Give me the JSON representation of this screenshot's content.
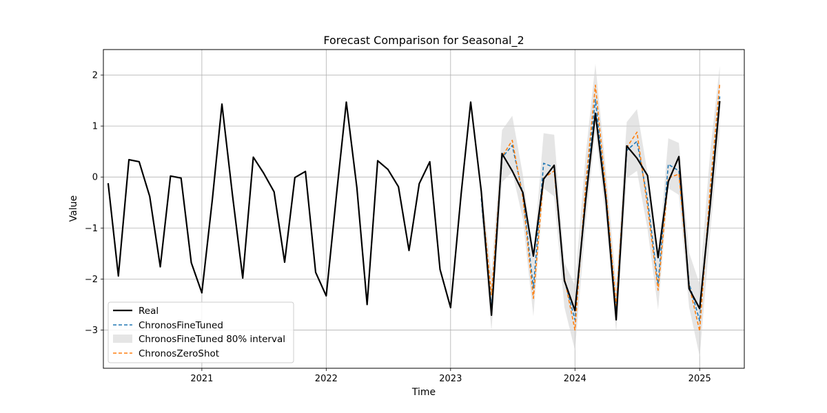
{
  "chart_data": {
    "type": "line",
    "title": "Forecast Comparison for Seasonal_2",
    "xlabel": "Time",
    "ylabel": "Value",
    "xlim": [
      "2020-03-18",
      "2025-05-12"
    ],
    "ylim": [
      -3.75,
      2.5
    ],
    "x_ticks": [
      "2021",
      "2022",
      "2023",
      "2024",
      "2025"
    ],
    "y_ticks": [
      -3,
      -2,
      -1,
      0,
      1,
      2
    ],
    "grid": true,
    "legend_position": "lower-left",
    "legend": [
      "Real",
      "ChronosFineTuned",
      "ChronosFineTuned 80% interval",
      "ChronosZeroShot"
    ],
    "series": [
      {
        "name": "Real",
        "style": "solid",
        "color": "#000000",
        "x": [
          "2020-04",
          "2020-05",
          "2020-06",
          "2020-07",
          "2020-08",
          "2020-09",
          "2020-10",
          "2020-11",
          "2020-12",
          "2021-01",
          "2021-02",
          "2021-03",
          "2021-04",
          "2021-05",
          "2021-06",
          "2021-07",
          "2021-08",
          "2021-09",
          "2021-10",
          "2021-11",
          "2021-12",
          "2022-01",
          "2022-02",
          "2022-03",
          "2022-04",
          "2022-05",
          "2022-06",
          "2022-07",
          "2022-08",
          "2022-09",
          "2022-10",
          "2022-11",
          "2022-12",
          "2023-01",
          "2023-02",
          "2023-03",
          "2023-04",
          "2023-05",
          "2023-06",
          "2023-07",
          "2023-08",
          "2023-09",
          "2023-10",
          "2023-11",
          "2023-12",
          "2024-01",
          "2024-02",
          "2024-03",
          "2024-04",
          "2024-05",
          "2024-06",
          "2024-07",
          "2024-08",
          "2024-09",
          "2024-10",
          "2024-11",
          "2024-12",
          "2025-01",
          "2025-02",
          "2025-03"
        ],
        "values": [
          -0.12,
          -1.94,
          0.34,
          0.3,
          -0.38,
          -1.76,
          0.02,
          -0.02,
          -1.68,
          -2.27,
          -0.43,
          1.43,
          -0.36,
          -1.98,
          0.39,
          0.08,
          -0.29,
          -1.67,
          -0.01,
          0.11,
          -1.87,
          -2.33,
          -0.29,
          1.47,
          -0.21,
          -2.5,
          0.32,
          0.15,
          -0.19,
          -1.44,
          -0.13,
          0.3,
          -1.81,
          -2.56,
          -0.33,
          1.47,
          -0.28,
          -2.71,
          0.46,
          0.12,
          -0.3,
          -1.55,
          -0.04,
          0.23,
          -2.03,
          -2.62,
          -0.48,
          1.25,
          -0.45,
          -2.8,
          0.61,
          0.37,
          0.03,
          -1.58,
          -0.09,
          0.4,
          -2.19,
          -2.58,
          -0.54,
          1.49
        ]
      },
      {
        "name": "ChronosFineTuned",
        "style": "dashed",
        "color": "#1f77b4",
        "x": [
          "2023-04",
          "2023-05",
          "2023-06",
          "2023-07",
          "2023-08",
          "2023-09",
          "2023-10",
          "2023-11",
          "2023-12",
          "2024-01",
          "2024-02",
          "2024-03",
          "2024-04",
          "2024-05",
          "2024-06",
          "2024-07",
          "2024-08",
          "2024-09",
          "2024-10",
          "2024-11",
          "2024-12",
          "2025-01",
          "2025-02",
          "2025-03"
        ],
        "values": [
          -0.42,
          -2.57,
          0.38,
          0.62,
          -0.34,
          -2.18,
          0.27,
          0.19,
          -2.02,
          -2.8,
          -0.3,
          1.52,
          -0.33,
          -2.62,
          0.52,
          0.7,
          -0.44,
          -2.1,
          0.25,
          0.12,
          -2.08,
          -2.82,
          -0.35,
          1.58
        ]
      },
      {
        "name": "ChronosZeroShot",
        "style": "dashed",
        "color": "#ff7f0e",
        "x": [
          "2023-04",
          "2023-05",
          "2023-06",
          "2023-07",
          "2023-08",
          "2023-09",
          "2023-10",
          "2023-11",
          "2023-12",
          "2024-01",
          "2024-02",
          "2024-03",
          "2024-04",
          "2024-05",
          "2024-06",
          "2024-07",
          "2024-08",
          "2024-09",
          "2024-10",
          "2024-11",
          "2024-12",
          "2025-01",
          "2025-02",
          "2025-03"
        ],
        "values": [
          -0.32,
          -2.31,
          0.4,
          0.72,
          -0.4,
          -2.38,
          -0.02,
          0.12,
          -1.98,
          -3.0,
          -0.18,
          1.8,
          -0.28,
          -2.52,
          0.58,
          0.88,
          -0.58,
          -2.22,
          -0.02,
          0.06,
          -2.12,
          -3.02,
          -0.2,
          1.84
        ]
      }
    ],
    "interval": {
      "name": "ChronosFineTuned 80% interval",
      "color": "#d3d3d3",
      "x": [
        "2023-04",
        "2023-05",
        "2023-06",
        "2023-07",
        "2023-08",
        "2023-09",
        "2023-10",
        "2023-11",
        "2023-12",
        "2024-01",
        "2024-02",
        "2024-03",
        "2024-04",
        "2024-05",
        "2024-06",
        "2024-07",
        "2024-08",
        "2024-09",
        "2024-10",
        "2024-11",
        "2024-12",
        "2025-01",
        "2025-02",
        "2025-03"
      ],
      "upper": [
        -0.1,
        -1.9,
        0.92,
        1.2,
        0.05,
        -1.55,
        0.86,
        0.83,
        -1.68,
        -2.12,
        0.4,
        2.22,
        0.12,
        -2.1,
        1.08,
        1.33,
        0.08,
        -1.62,
        0.76,
        0.67,
        -1.48,
        -2.1,
        0.5,
        2.18
      ],
      "lower": [
        -0.72,
        -3.02,
        -0.1,
        0.1,
        -0.82,
        -2.73,
        -0.22,
        -0.38,
        -2.55,
        -3.4,
        -0.95,
        0.9,
        -0.82,
        -3.05,
        -0.02,
        0.12,
        -1.02,
        -2.6,
        -0.22,
        -0.35,
        -2.55,
        -3.52,
        -1.08,
        0.9
      ]
    }
  }
}
